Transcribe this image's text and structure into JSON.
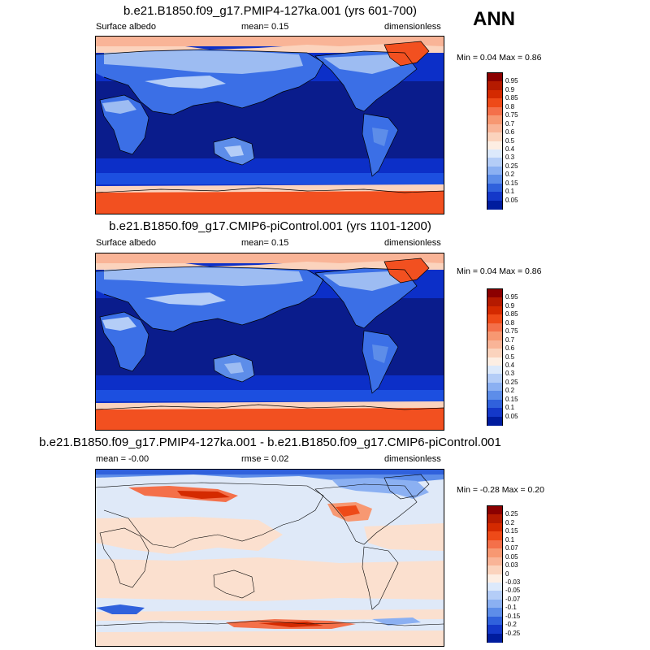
{
  "season": "ANN",
  "panels": [
    {
      "title": "b.e21.B1850.f09_g17.PMIP4-127ka.001 (yrs 601-700)",
      "left_label": "Surface albedo",
      "center_label": "mean=   0.15",
      "right_label": "dimensionless",
      "minmax": "Min =   0.04 Max =   0.86"
    },
    {
      "title": "b.e21.B1850.f09_g17.CMIP6-piControl.001 (yrs 1101-1200)",
      "left_label": "Surface albedo",
      "center_label": "mean=   0.15",
      "right_label": "dimensionless",
      "minmax": "Min =   0.04 Max =   0.86"
    },
    {
      "title": "b.e21.B1850.f09_g17.PMIP4-127ka.001 - b.e21.B1850.f09_g17.CMIP6-piControl.001",
      "left_label": "mean =  -0.00",
      "center_label": "rmse =  0.02",
      "right_label": "dimensionless",
      "minmax": "Min =  -0.28 Max =   0.20"
    }
  ],
  "colorbars": {
    "albedo": {
      "ticks": [
        "0.95",
        "0.9",
        "0.85",
        "0.8",
        "0.75",
        "0.7",
        "0.6",
        "0.5",
        "0.4",
        "0.3",
        "0.25",
        "0.2",
        "0.15",
        "0.1",
        "0.05"
      ],
      "colors": [
        "#8b0000",
        "#b51a00",
        "#d42a00",
        "#ee4a18",
        "#f4704a",
        "#f79872",
        "#f9b497",
        "#fbd3bd",
        "#fdeee3",
        "#dce9fb",
        "#b4cdf7",
        "#8bb0f2",
        "#5d8de9",
        "#3061dc",
        "#1438c9",
        "#001c9e"
      ]
    },
    "difference": {
      "ticks": [
        "0.25",
        "0.2",
        "0.15",
        "0.1",
        "0.07",
        "0.05",
        "0.03",
        "0",
        "-0.03",
        "-0.05",
        "-0.07",
        "-0.1",
        "-0.15",
        "-0.2",
        "-0.25"
      ],
      "colors": [
        "#8b0000",
        "#b51a00",
        "#d42a00",
        "#ee4a18",
        "#f4704a",
        "#f79872",
        "#f9b497",
        "#fbd3bd",
        "#fdeee3",
        "#dce9fb",
        "#b4cdf7",
        "#8bb0f2",
        "#5d8de9",
        "#3061dc",
        "#1438c9",
        "#001c9e"
      ]
    }
  },
  "palette": {
    "ocean_deep": "#0a1c8c",
    "ocean": "#0c2fc8",
    "ocean_mid": "#1c4fe0",
    "land_mid": "#3b6fe6",
    "land_light": "#9dbcf2",
    "snow": "#f9b497",
    "ice": "#f25020",
    "diff_neutral": "#dfe9f8",
    "diff_warm": "#fbe0cf"
  }
}
